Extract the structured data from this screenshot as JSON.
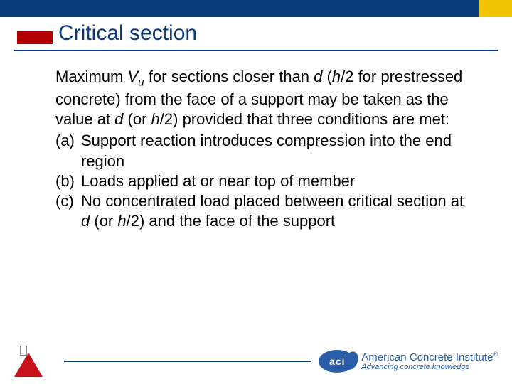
{
  "colors": {
    "header_bar": "#0a3b7a",
    "header_accent": "#f2c300",
    "title_text": "#0a3b7a",
    "title_red": "#b30000",
    "underline": "#0a3b7a",
    "body_text": "#000000",
    "footer_line": "#0a3b7a",
    "aci_blue": "#2a5ea8",
    "ibst_red": "#c81018",
    "background": "#ffffff"
  },
  "title": "Critical section",
  "intro": {
    "pre": "Maximum ",
    "var1": "V",
    "sub1": "u",
    "mid1": " for sections closer than ",
    "var2": "d",
    "mid2": " (",
    "var3": "h",
    "mid3": "/2 for prestressed concrete) from the face of a support may be taken as the value at ",
    "var4": "d",
    "mid4": " (or ",
    "var5": "h",
    "mid5": "/2) provided that three conditions are met:"
  },
  "conditions": [
    {
      "label": "(a)",
      "text": "Support reaction introduces compression into the end region"
    },
    {
      "label": "(b)",
      "text": "Loads applied at or near top of member"
    },
    {
      "label": "(c)",
      "pre": "No concentrated load placed between critical section at ",
      "var1": "d",
      "mid1": " (or ",
      "var2": "h",
      "post": "/2) and the face of the support"
    }
  ],
  "footer": {
    "aci_abbr": "aci",
    "aci_name": "American Concrete Institute",
    "aci_tagline": "Advancing concrete knowledge",
    "reg": "®"
  }
}
